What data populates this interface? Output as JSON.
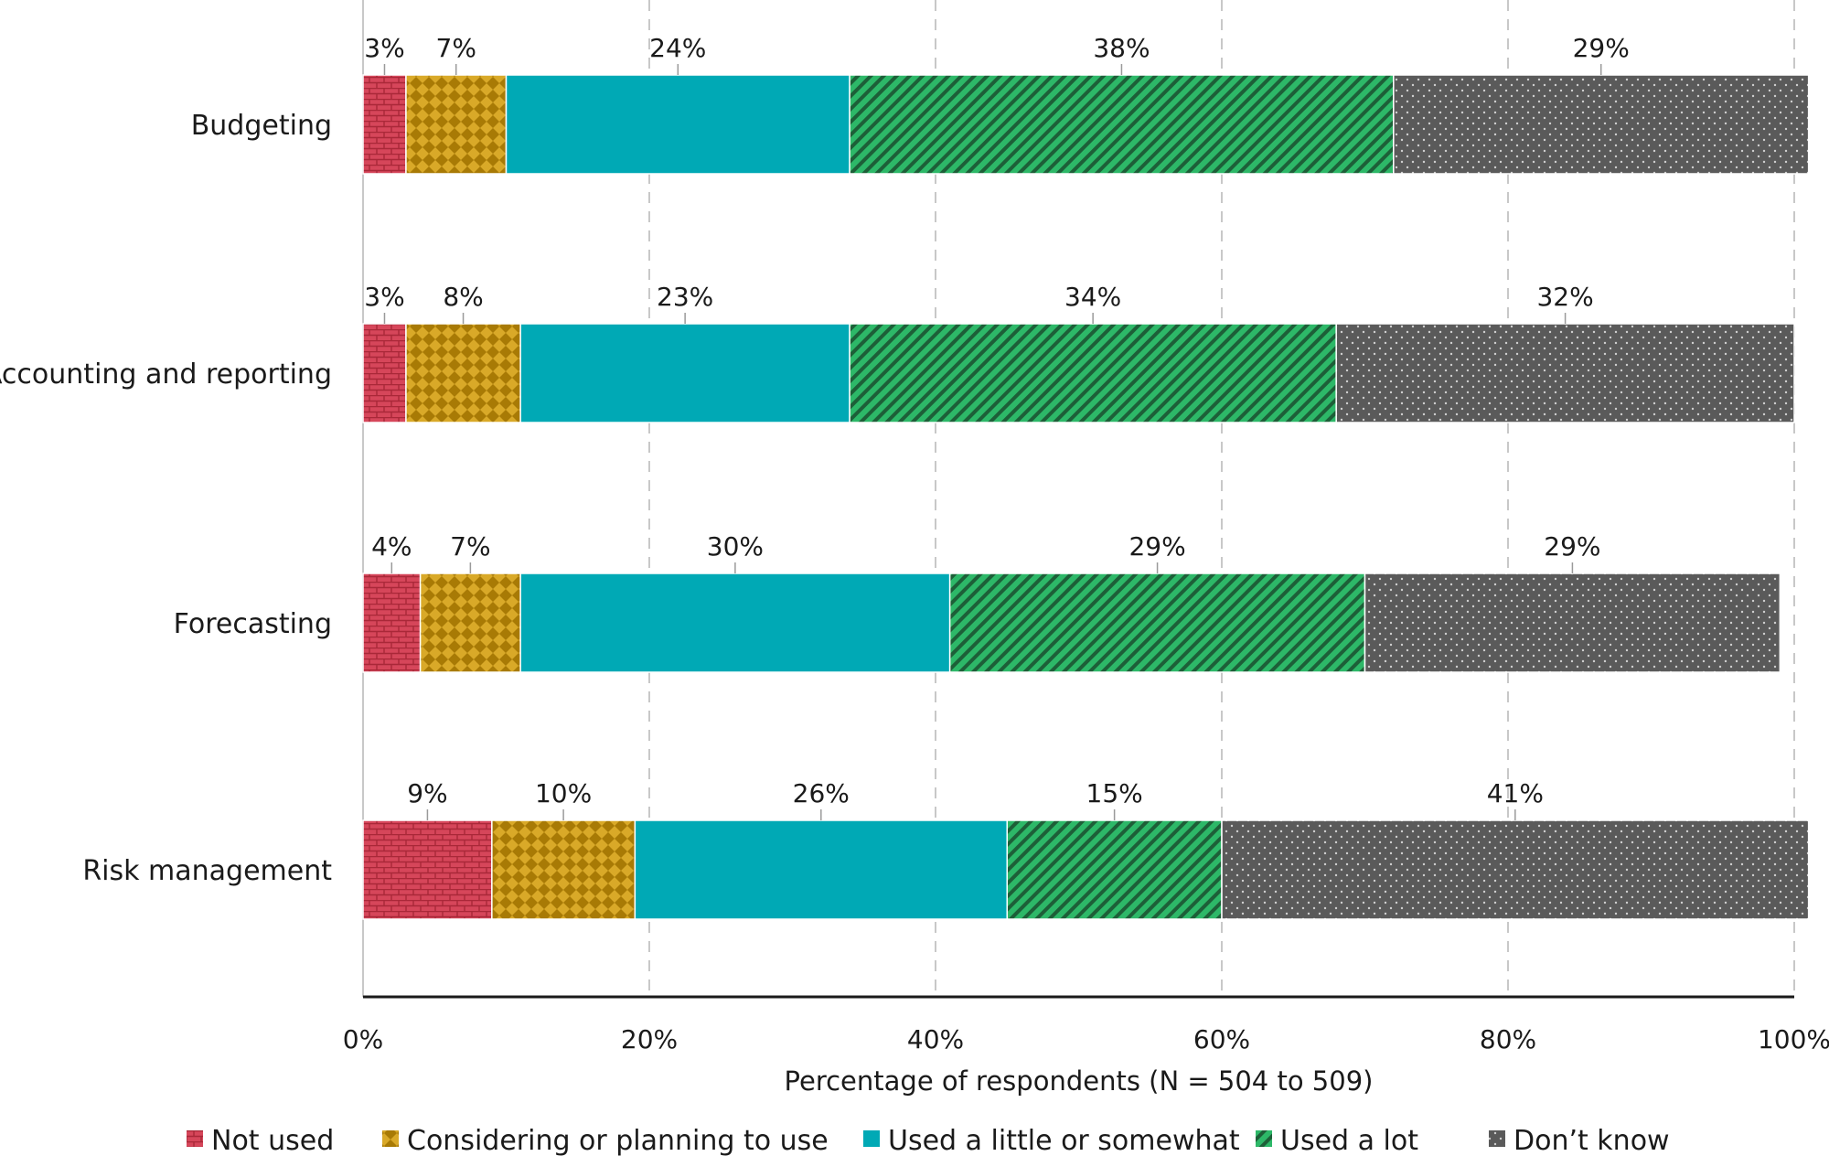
{
  "chart_data": {
    "type": "bar",
    "orientation": "horizontal",
    "stacked": true,
    "categories": [
      "Budgeting",
      "Accounting and reporting",
      "Forecasting",
      "Risk management"
    ],
    "series": [
      {
        "name": "Not used",
        "values": [
          3,
          3,
          4,
          9
        ],
        "labels": [
          "3%",
          "3%",
          "4%",
          "9%"
        ],
        "color": "#d6465a",
        "pattern": "brick"
      },
      {
        "name": "Considering or planning to use",
        "values": [
          7,
          8,
          7,
          10
        ],
        "labels": [
          "7%",
          "8%",
          "7%",
          "10%"
        ],
        "color": "#c99a14",
        "pattern": "checker"
      },
      {
        "name": "Used a little or somewhat",
        "values": [
          24,
          23,
          30,
          26
        ],
        "labels": [
          "24%",
          "23%",
          "30%",
          "26%"
        ],
        "color": "#00a9b5",
        "pattern": "solid"
      },
      {
        "name": "Used a lot",
        "values": [
          38,
          34,
          29,
          15
        ],
        "labels": [
          "38%",
          "34%",
          "29%",
          "15%"
        ],
        "color": "#2db868",
        "pattern": "diagonal"
      },
      {
        "name": "Don’t know",
        "values": [
          29,
          32,
          29,
          41
        ],
        "labels": [
          "29%",
          "32%",
          "29%",
          "41%"
        ],
        "color": "#5a5a5a",
        "pattern": "dots"
      }
    ],
    "xlim": [
      0,
      100
    ],
    "xticks": [
      "0%",
      "20%",
      "40%",
      "60%",
      "80%",
      "100%"
    ],
    "xlabel": "Percentage of respondents (N = 504 to 509)",
    "ylabel": "",
    "grid": "vertical dashed",
    "legend_position": "bottom"
  }
}
